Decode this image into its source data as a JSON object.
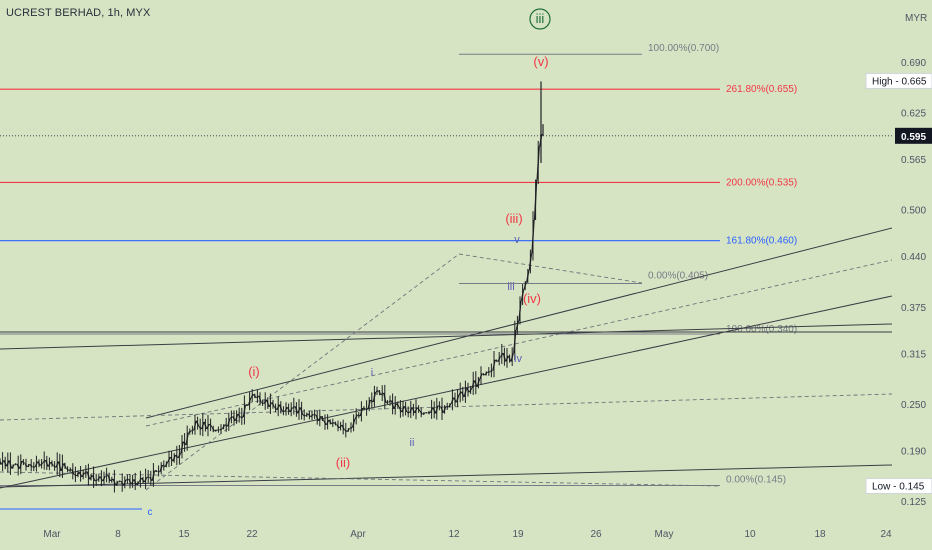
{
  "title": "UCREST BERHAD, 1h, MYX",
  "currency": "MYR",
  "chart_data": {
    "type": "candlestick",
    "title": "UCREST BERHAD, 1h, MYX",
    "ylabel": "MYR",
    "ylim": [
      0.115,
      0.74
    ],
    "y_ticks": [
      "0.690",
      "0.625",
      "0.565",
      "0.500",
      "0.440",
      "0.375",
      "0.315",
      "0.250",
      "0.190",
      "0.125"
    ],
    "x_ticks": [
      "Mar",
      "8",
      "15",
      "22",
      "Apr",
      "12",
      "19",
      "26",
      "May",
      "10",
      "18",
      "24"
    ],
    "last_price": "0.595",
    "high": {
      "label": "High",
      "value": "0.665"
    },
    "low": {
      "label": "Low",
      "value": "0.145"
    },
    "price_path": [
      {
        "t": "Feb 24",
        "v": 0.18
      },
      {
        "t": "Mar 1",
        "v": 0.172
      },
      {
        "t": "Mar 4",
        "v": 0.16
      },
      {
        "t": "Mar 8",
        "v": 0.15
      },
      {
        "t": "Mar 11",
        "v": 0.15
      },
      {
        "t": "Mar 12",
        "v": 0.165
      },
      {
        "t": "Mar 14",
        "v": 0.185
      },
      {
        "t": "Mar 16",
        "v": 0.225
      },
      {
        "t": "Mar 18",
        "v": 0.215
      },
      {
        "t": "Mar 21",
        "v": 0.24
      },
      {
        "t": "Mar 22",
        "v": 0.26
      },
      {
        "t": "Mar 24",
        "v": 0.245
      },
      {
        "t": "Mar 27",
        "v": 0.24
      },
      {
        "t": "Mar 30",
        "v": 0.225
      },
      {
        "t": "Apr 1",
        "v": 0.218
      },
      {
        "t": "Apr 3",
        "v": 0.25
      },
      {
        "t": "Apr 4",
        "v": 0.265
      },
      {
        "t": "Apr 6",
        "v": 0.245
      },
      {
        "t": "Apr 9",
        "v": 0.238
      },
      {
        "t": "Apr 11",
        "v": 0.245
      },
      {
        "t": "Apr 13",
        "v": 0.262
      },
      {
        "t": "Apr 15",
        "v": 0.285
      },
      {
        "t": "Apr 17",
        "v": 0.31
      },
      {
        "t": "Apr 18",
        "v": 0.305
      },
      {
        "t": "Apr 19",
        "v": 0.38
      },
      {
        "t": "Apr 20",
        "v": 0.43
      },
      {
        "t": "Apr 21",
        "v": 0.6
      },
      {
        "t": "Apr 21 ",
        "v": 0.595
      }
    ],
    "horizontal_levels": [
      {
        "label": "100.00%(0.700)",
        "value": 0.7,
        "color": "#787b86"
      },
      {
        "label": "261.80%(0.655)",
        "value": 0.655,
        "color": "#f23645"
      },
      {
        "label": "200.00%(0.535)",
        "value": 0.535,
        "color": "#f23645"
      },
      {
        "label": "161.80%(0.460)",
        "value": 0.46,
        "color": "#2962ff"
      },
      {
        "label": "0.00%(0.405)",
        "value": 0.405,
        "color": "#787b86"
      },
      {
        "label": "100.00%(0.340)",
        "value": 0.34,
        "color": "#787b86"
      },
      {
        "label": "0.00%(0.145)",
        "value": 0.145,
        "color": "#787b86"
      }
    ],
    "wave_labels": [
      {
        "text": "iii",
        "circled": true,
        "color": "#1e6b3a"
      },
      {
        "text": "(v)",
        "color": "#f23645"
      },
      {
        "text": "(iii)",
        "color": "#f23645"
      },
      {
        "text": "(iv)",
        "color": "#f23645"
      },
      {
        "text": "(i)",
        "color": "#f23645"
      },
      {
        "text": "(ii)",
        "color": "#f23645"
      },
      {
        "text": "v",
        "color": "#5b5fb5"
      },
      {
        "text": "iii",
        "color": "#5b5fb5"
      },
      {
        "text": "iv",
        "color": "#5b5fb5"
      },
      {
        "text": "i",
        "color": "#5b5fb5"
      },
      {
        "text": "ii",
        "color": "#5b5fb5"
      },
      {
        "text": "c",
        "color": "#2962ff"
      }
    ]
  }
}
